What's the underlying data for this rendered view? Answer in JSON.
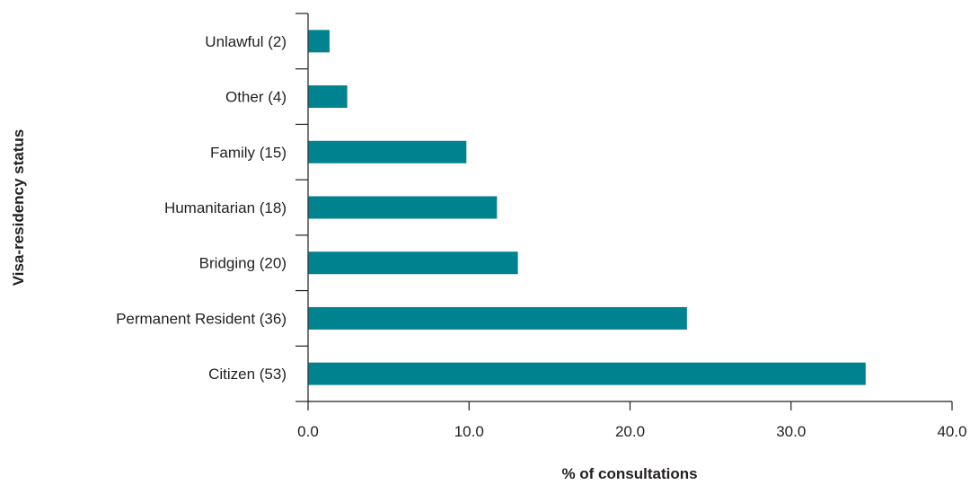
{
  "chart_data": {
    "type": "bar",
    "orientation": "horizontal",
    "categories": [
      "Unlawful (2)",
      "Other (4)",
      "Family (15)",
      "Humanitarian (18)",
      "Bridging (20)",
      "Permanent Resident (36)",
      "Citizen (53)"
    ],
    "values": [
      1.3,
      2.4,
      9.8,
      11.7,
      13.0,
      23.5,
      34.6
    ],
    "xlabel": "% of consultations",
    "ylabel": "Visa-residency status",
    "xlim": [
      0,
      40
    ],
    "xticks": [
      "0.0",
      "10.0",
      "20.0",
      "30.0",
      "40.0"
    ],
    "bar_color": "#00838f",
    "grid": false,
    "legend": "none"
  }
}
